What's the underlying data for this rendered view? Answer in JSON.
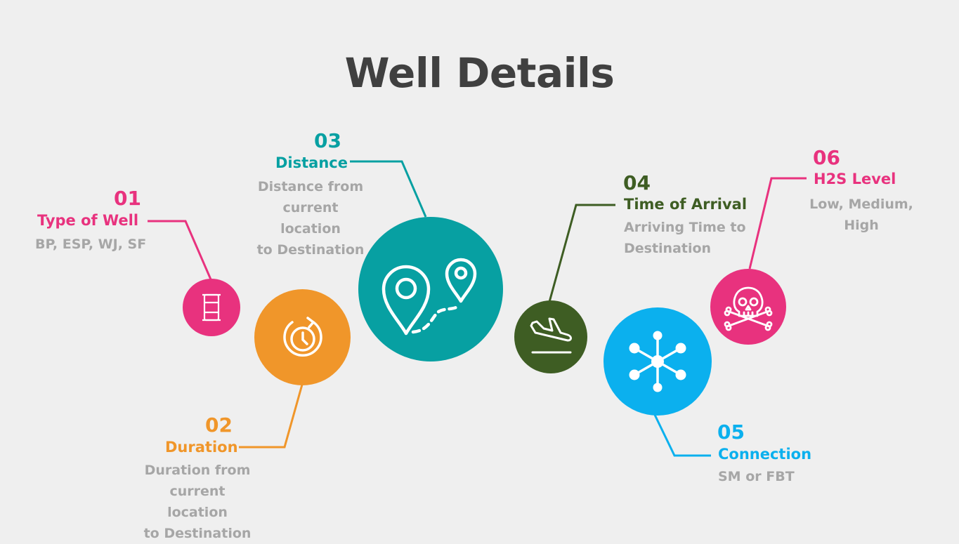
{
  "title": "Well Details",
  "colors": {
    "background": "#efefef",
    "title": "#404040",
    "description": "#a6a6a6",
    "item1": "#e8327e",
    "item2": "#f0962a",
    "item3": "#07a0a2",
    "item4": "#3e5d23",
    "item5": "#0bb0ee",
    "item6": "#e8327e"
  },
  "items": [
    {
      "number": "01",
      "label": "Type of Well",
      "description": "BP, ESP, WJ, SF",
      "icon": "oil-barrel-icon"
    },
    {
      "number": "02",
      "label": "Duration",
      "description": "Duration from\ncurrent location\nto Destination",
      "icon": "clock-refresh-icon"
    },
    {
      "number": "03",
      "label": "Distance",
      "description": "Distance from\ncurrent location\nto Destination",
      "icon": "route-map-pins-icon"
    },
    {
      "number": "04",
      "label": "Time of Arrival",
      "description": "Arriving Time to\nDestination",
      "icon": "airplane-landing-icon"
    },
    {
      "number": "05",
      "label": "Connection",
      "description": "SM or FBT",
      "icon": "network-hub-icon"
    },
    {
      "number": "06",
      "label": "H2S Level",
      "description": "Low, Medium,\nHigh",
      "icon": "skull-crossbones-icon"
    }
  ]
}
